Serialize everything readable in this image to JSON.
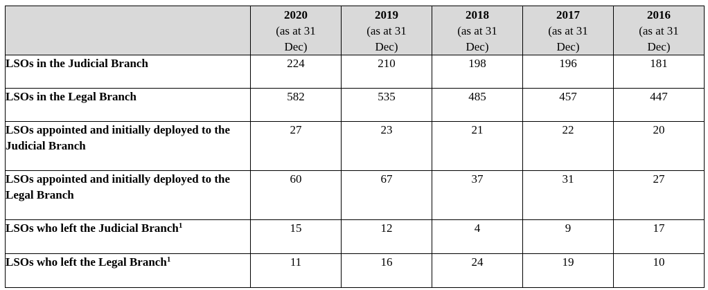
{
  "table": {
    "columns": [
      {
        "year": "2020",
        "sub_1": "(as at 31",
        "sub_2": "Dec)"
      },
      {
        "year": "2019",
        "sub_1": "(as at 31",
        "sub_2": "Dec)"
      },
      {
        "year": "2018",
        "sub_1": "(as at 31",
        "sub_2": "Dec)"
      },
      {
        "year": "2017",
        "sub_1": "(as at 31",
        "sub_2": "Dec)"
      },
      {
        "year": "2016",
        "sub_1": "(as at 31",
        "sub_2": "Dec)"
      }
    ],
    "rows": [
      {
        "label": "LSOs in the Judicial Branch",
        "footnote": "",
        "values": [
          "224",
          "210",
          "198",
          "196",
          "181"
        ]
      },
      {
        "label": "LSOs in the Legal Branch",
        "footnote": "",
        "values": [
          "582",
          "535",
          "485",
          "457",
          "447"
        ]
      },
      {
        "label": "LSOs appointed and initially deployed to the Judicial Branch",
        "footnote": "",
        "values": [
          "27",
          "23",
          "21",
          "22",
          "20"
        ]
      },
      {
        "label": "LSOs appointed and initially deployed to the Legal Branch",
        "footnote": "",
        "values": [
          "60",
          "67",
          "37",
          "31",
          "27"
        ]
      },
      {
        "label": "LSOs who left the Judicial Branch",
        "footnote": "1",
        "values": [
          "15",
          "12",
          "4",
          "9",
          "17"
        ]
      },
      {
        "label": "LSOs who left the Legal Branch",
        "footnote": "1",
        "values": [
          "11",
          "16",
          "24",
          "19",
          "10"
        ]
      }
    ]
  }
}
